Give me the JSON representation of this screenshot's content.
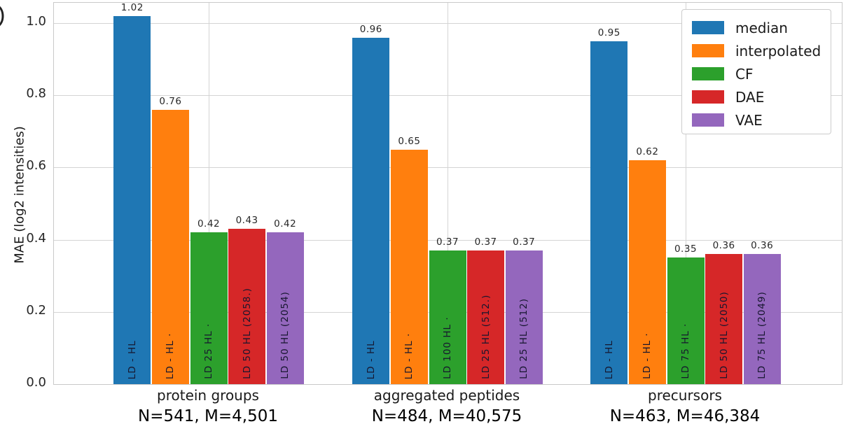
{
  "panel": {
    "fragment_glyph": ")"
  },
  "chart_data": {
    "type": "bar",
    "title": "",
    "xlabel": "",
    "ylabel": "MAE (log2 intensities)",
    "ylim": [
      0.0,
      1.05
    ],
    "yticks": [
      "0.0",
      "0.2",
      "0.4",
      "0.6",
      "0.8",
      "1.0"
    ],
    "grid": "on",
    "legend_position": "upper right",
    "legend": [
      {
        "label": "median",
        "color": "#1f77b4"
      },
      {
        "label": "interpolated",
        "color": "#ff7f0e"
      },
      {
        "label": "CF",
        "color": "#2ca02c"
      },
      {
        "label": "DAE",
        "color": "#d62728"
      },
      {
        "label": "VAE",
        "color": "#9467bd"
      }
    ],
    "groups": [
      {
        "category": "protein groups",
        "sublabel": "N=541, M=4,501",
        "bars": [
          {
            "series": "median",
            "value": 1.02,
            "value_label": "1.02",
            "bar_text": "LD - HL"
          },
          {
            "series": "interpolated",
            "value": 0.76,
            "value_label": "0.76",
            "bar_text": "LD - HL ·"
          },
          {
            "series": "CF",
            "value": 0.42,
            "value_label": "0.42",
            "bar_text": "LD 25 HL ·"
          },
          {
            "series": "DAE",
            "value": 0.43,
            "value_label": "0.43",
            "bar_text": "LD 50 HL (2058.)"
          },
          {
            "series": "VAE",
            "value": 0.42,
            "value_label": "0.42",
            "bar_text": "LD 50 HL (2054)"
          }
        ]
      },
      {
        "category": "aggregated peptides",
        "sublabel": "N=484, M=40,575",
        "bars": [
          {
            "series": "median",
            "value": 0.96,
            "value_label": "0.96",
            "bar_text": "LD - HL"
          },
          {
            "series": "interpolated",
            "value": 0.65,
            "value_label": "0.65",
            "bar_text": "LD - HL ·"
          },
          {
            "series": "CF",
            "value": 0.37,
            "value_label": "0.37",
            "bar_text": "LD 100 HL ·"
          },
          {
            "series": "DAE",
            "value": 0.37,
            "value_label": "0.37",
            "bar_text": "LD 25 HL (512.)"
          },
          {
            "series": "VAE",
            "value": 0.37,
            "value_label": "0.37",
            "bar_text": "LD 25 HL (512)"
          }
        ]
      },
      {
        "category": "precursors",
        "sublabel": "N=463, M=46,384",
        "bars": [
          {
            "series": "median",
            "value": 0.95,
            "value_label": "0.95",
            "bar_text": "LD - HL"
          },
          {
            "series": "interpolated",
            "value": 0.62,
            "value_label": "0.62",
            "bar_text": "LD - HL ·"
          },
          {
            "series": "CF",
            "value": 0.35,
            "value_label": "0.35",
            "bar_text": "LD 75 HL ·"
          },
          {
            "series": "DAE",
            "value": 0.36,
            "value_label": "0.36",
            "bar_text": "LD 50 HL (2050)"
          },
          {
            "series": "VAE",
            "value": 0.36,
            "value_label": "0.36",
            "bar_text": "LD 75 HL (2049)"
          }
        ]
      }
    ]
  }
}
